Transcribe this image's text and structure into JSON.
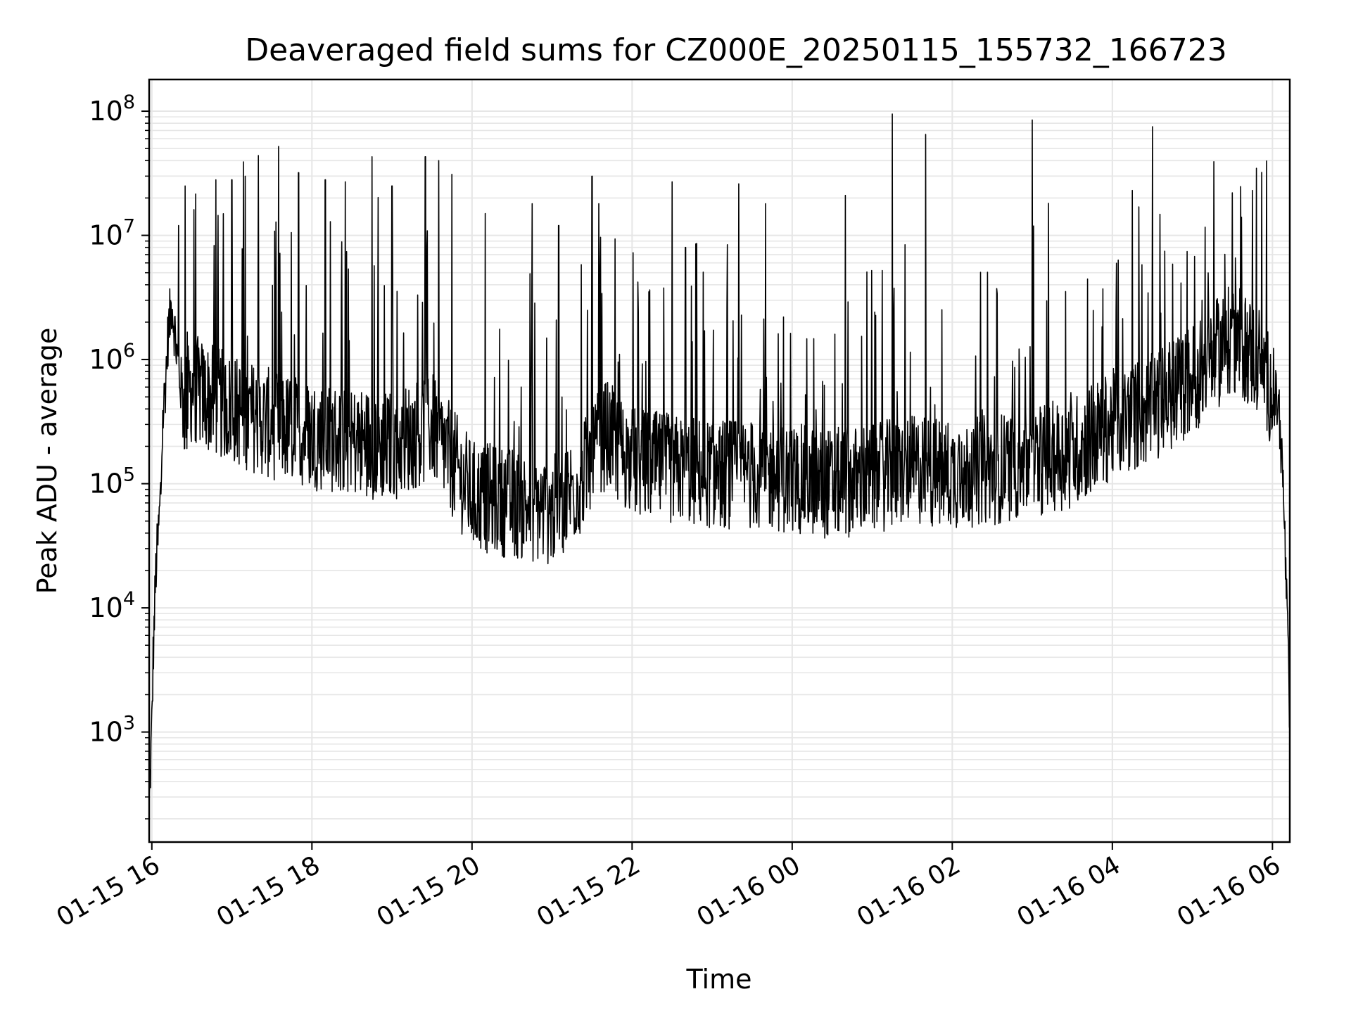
{
  "chart_data": {
    "type": "line",
    "title": "Deaveraged field sums for CZ000E_20250115_155732_166723",
    "xlabel": "Time",
    "ylabel": "Peak ADU - average",
    "yscale": "log",
    "grid": true,
    "line_color": "#000000",
    "grid_color": "#e6e6e6",
    "xlim": [
      "2025-01-15 15:58",
      "2025-01-16 06:13"
    ],
    "ylim": [
      130,
      180000000
    ],
    "x_ticks": [
      {
        "t": "2025-01-15 16:00",
        "label": "01-15 16"
      },
      {
        "t": "2025-01-15 18:00",
        "label": "01-15 18"
      },
      {
        "t": "2025-01-15 20:00",
        "label": "01-15 20"
      },
      {
        "t": "2025-01-15 22:00",
        "label": "01-15 22"
      },
      {
        "t": "2025-01-16 00:00",
        "label": "01-16 00"
      },
      {
        "t": "2025-01-16 02:00",
        "label": "01-16 02"
      },
      {
        "t": "2025-01-16 04:00",
        "label": "01-16 04"
      },
      {
        "t": "2025-01-16 06:00",
        "label": "01-16 06"
      }
    ],
    "y_ticks": [
      {
        "value": 1000,
        "base": "10",
        "exp": "3"
      },
      {
        "value": 10000,
        "base": "10",
        "exp": "4"
      },
      {
        "value": 100000,
        "base": "10",
        "exp": "5"
      },
      {
        "value": 1000000,
        "base": "10",
        "exp": "6"
      },
      {
        "value": 10000000,
        "base": "10",
        "exp": "7"
      },
      {
        "value": 100000000,
        "base": "10",
        "exp": "8"
      }
    ],
    "series": [
      {
        "values_note_format": "[time, ADU]",
        "points": [
          [
            "2025-01-15 15:58",
            250
          ],
          [
            "2025-01-15 16:00",
            1100
          ],
          [
            "2025-01-15 16:01",
            4000
          ],
          [
            "2025-01-15 16:03",
            20000
          ],
          [
            "2025-01-15 16:05",
            40000
          ],
          [
            "2025-01-15 16:07",
            100000
          ],
          [
            "2025-01-15 16:08",
            300000
          ],
          [
            "2025-01-15 16:10",
            600000
          ],
          [
            "2025-01-15 16:12",
            1500000
          ],
          [
            "2025-01-15 16:15",
            3000000
          ],
          [
            "2025-01-15 16:20",
            800000
          ],
          [
            "2025-01-15 16:25",
            400000
          ],
          [
            "2025-01-15 16:30",
            600000
          ],
          [
            "2025-01-15 16:40",
            500000
          ],
          [
            "2025-01-15 17:00",
            400000
          ],
          [
            "2025-01-15 17:30",
            300000
          ],
          [
            "2025-01-15 18:00",
            250000
          ],
          [
            "2025-01-15 18:30",
            220000
          ],
          [
            "2025-01-15 19:00",
            200000
          ],
          [
            "2025-01-15 19:30",
            300000
          ],
          [
            "2025-01-15 19:45",
            150000
          ],
          [
            "2025-01-15 20:00",
            80000
          ],
          [
            "2025-01-15 20:30",
            70000
          ],
          [
            "2025-01-15 21:00",
            60000
          ],
          [
            "2025-01-15 21:20",
            100000
          ],
          [
            "2025-01-15 21:40",
            250000
          ],
          [
            "2025-01-15 22:00",
            150000
          ],
          [
            "2025-01-15 22:30",
            130000
          ],
          [
            "2025-01-15 23:00",
            120000
          ],
          [
            "2025-01-15 23:30",
            120000
          ],
          [
            "2025-01-16 00:00",
            110000
          ],
          [
            "2025-01-16 00:30",
            100000
          ],
          [
            "2025-01-16 01:00",
            110000
          ],
          [
            "2025-01-16 01:30",
            130000
          ],
          [
            "2025-01-16 02:00",
            120000
          ],
          [
            "2025-01-16 02:30",
            130000
          ],
          [
            "2025-01-16 03:00",
            150000
          ],
          [
            "2025-01-16 03:30",
            180000
          ],
          [
            "2025-01-16 04:00",
            300000
          ],
          [
            "2025-01-16 04:30",
            400000
          ],
          [
            "2025-01-16 05:00",
            700000
          ],
          [
            "2025-01-16 05:30",
            1500000
          ],
          [
            "2025-01-16 05:50",
            1000000
          ],
          [
            "2025-01-16 06:05",
            400000
          ],
          [
            "2025-01-16 06:08",
            100000
          ],
          [
            "2025-01-16 06:10",
            20000
          ],
          [
            "2025-01-16 06:12",
            3000
          ],
          [
            "2025-01-16 06:13",
            1000
          ]
        ],
        "spikes": [
          [
            "2025-01-15 16:20",
            12000000
          ],
          [
            "2025-01-15 16:25",
            25000000
          ],
          [
            "2025-01-15 16:48",
            28000000
          ],
          [
            "2025-01-15 17:00",
            28000000
          ],
          [
            "2025-01-15 17:10",
            30000000
          ],
          [
            "2025-01-15 17:20",
            44000000
          ],
          [
            "2025-01-15 17:35",
            52000000
          ],
          [
            "2025-01-15 17:50",
            32000000
          ],
          [
            "2025-01-15 18:10",
            28000000
          ],
          [
            "2025-01-15 18:25",
            27000000
          ],
          [
            "2025-01-15 18:45",
            43000000
          ],
          [
            "2025-01-15 19:00",
            25000000
          ],
          [
            "2025-01-15 19:25",
            43000000
          ],
          [
            "2025-01-15 19:35",
            40000000
          ],
          [
            "2025-01-15 19:45",
            31000000
          ],
          [
            "2025-01-15 20:10",
            15000000
          ],
          [
            "2025-01-15 20:45",
            18000000
          ],
          [
            "2025-01-15 21:05",
            12000000
          ],
          [
            "2025-01-15 21:30",
            30000000
          ],
          [
            "2025-01-15 21:35",
            18000000
          ],
          [
            "2025-01-15 22:30",
            27000000
          ],
          [
            "2025-01-15 22:40",
            8000000
          ],
          [
            "2025-01-15 23:20",
            26000000
          ],
          [
            "2025-01-15 23:40",
            18000000
          ],
          [
            "2025-01-16 00:40",
            21000000
          ],
          [
            "2025-01-16 01:15",
            95000000
          ],
          [
            "2025-01-16 01:40",
            65000000
          ],
          [
            "2025-01-16 03:00",
            85000000
          ],
          [
            "2025-01-16 04:15",
            23000000
          ],
          [
            "2025-01-16 04:30",
            75000000
          ],
          [
            "2025-01-16 05:30",
            22000000
          ],
          [
            "2025-01-16 05:45",
            23000000
          ]
        ]
      }
    ]
  }
}
